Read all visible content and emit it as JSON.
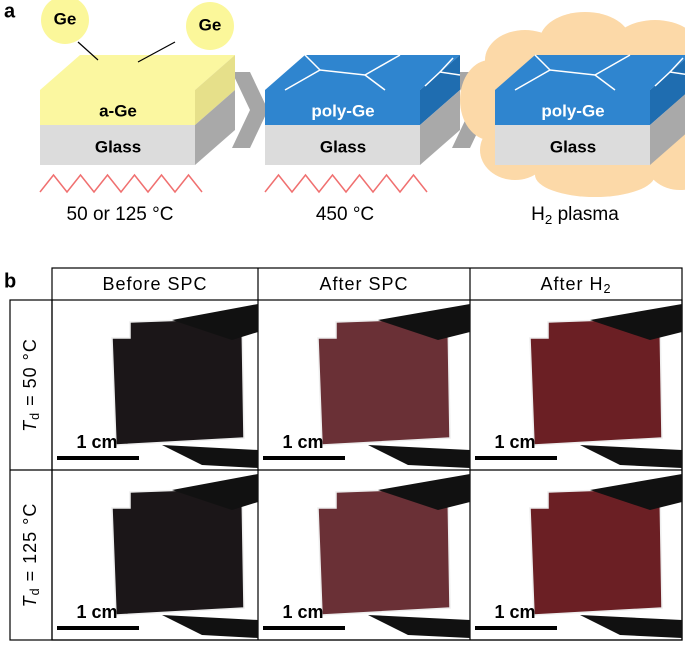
{
  "panel_a": {
    "label": "a",
    "atoms": [
      "Ge",
      "Ge"
    ],
    "steps": [
      {
        "film": "a-Ge",
        "substrate": "Glass",
        "condition": {
          "main": "50 or 125 °C"
        }
      },
      {
        "film": "poly-Ge",
        "substrate": "Glass",
        "condition": {
          "main": "450 °C"
        }
      },
      {
        "film": "poly-Ge",
        "substrate": "Glass",
        "condition": {
          "main": "H",
          "sub": "2",
          "rest": " plasma"
        }
      }
    ]
  },
  "panel_b": {
    "label": "b",
    "columns": [
      {
        "main": "Before SPC"
      },
      {
        "main": "After SPC"
      },
      {
        "main": "After H",
        "sub": "2"
      }
    ],
    "rows": [
      {
        "label": {
          "symbol": "T",
          "sub": "d",
          "rest": " = 50 °C"
        },
        "scale_bars": [
          "1 cm",
          "1 cm",
          "1 cm"
        ]
      },
      {
        "label": {
          "symbol": "T",
          "sub": "d",
          "rest": " = 125 °C"
        },
        "scale_bars": [
          "1 cm",
          "1 cm",
          "1 cm"
        ]
      }
    ]
  }
}
